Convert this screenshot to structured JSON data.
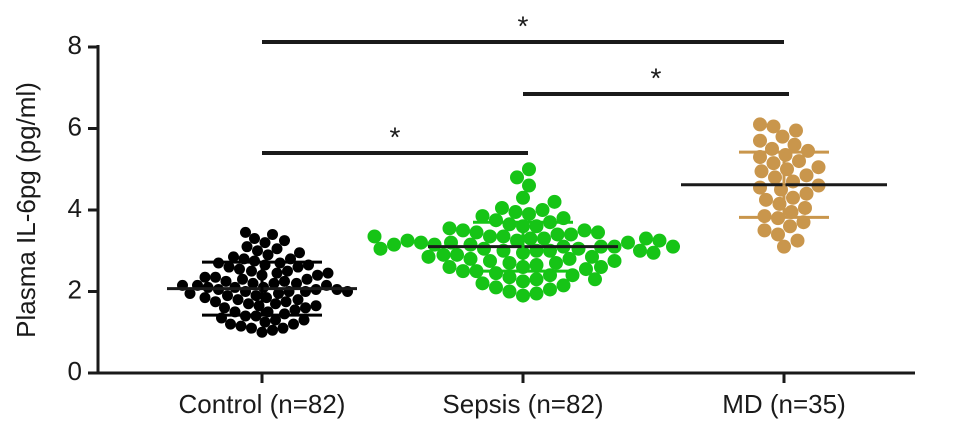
{
  "chart_data": {
    "type": "strip",
    "ylabel": "Plasma IL-6pg (pg/ml)",
    "categories": [
      "Control (n=82)",
      "Sepsis (n=82)",
      "MD (n=35)"
    ],
    "ylim": [
      0,
      8
    ],
    "yticks": [
      0,
      2,
      4,
      6,
      8
    ],
    "series": [
      {
        "color": "#000000",
        "mean": 2.07,
        "sd": 0.65,
        "values": [
          1.0,
          1.05,
          1.1,
          1.1,
          1.15,
          1.2,
          1.2,
          1.25,
          1.3,
          1.3,
          1.4,
          1.4,
          1.45,
          1.5,
          1.5,
          1.55,
          1.6,
          1.6,
          1.65,
          1.7,
          1.7,
          1.75,
          1.8,
          1.8,
          1.85,
          1.9,
          1.9,
          1.95,
          2.0,
          2.0,
          2.0,
          2.05,
          2.05,
          2.1,
          2.1,
          2.1,
          2.15,
          2.15,
          2.2,
          2.2,
          2.2,
          2.25,
          2.25,
          2.3,
          2.3,
          2.35,
          2.4,
          2.4,
          2.45,
          2.5,
          2.5,
          2.55,
          2.6,
          2.6,
          2.65,
          2.7,
          2.7,
          2.75,
          2.8,
          2.8,
          2.85,
          2.9,
          2.95,
          3.0,
          3.05,
          3.1,
          3.2,
          3.25,
          3.3,
          3.4,
          3.45,
          1.35,
          1.75,
          1.85,
          2.05,
          2.35,
          2.45,
          2.65,
          1.95,
          2.15,
          1.65,
          2.0
        ]
      },
      {
        "color": "#16c416",
        "mean": 3.1,
        "sd": 0.6,
        "values": [
          1.9,
          1.95,
          2.0,
          2.05,
          2.1,
          2.15,
          2.2,
          2.25,
          2.3,
          2.35,
          2.4,
          2.4,
          2.45,
          2.5,
          2.5,
          2.55,
          2.6,
          2.6,
          2.65,
          2.7,
          2.7,
          2.75,
          2.8,
          2.8,
          2.85,
          2.9,
          2.9,
          2.95,
          3.0,
          3.0,
          3.0,
          3.05,
          3.05,
          3.1,
          3.1,
          3.1,
          3.15,
          3.15,
          3.2,
          3.2,
          3.2,
          3.25,
          3.25,
          3.3,
          3.3,
          3.35,
          3.35,
          3.4,
          3.4,
          3.45,
          3.5,
          3.5,
          3.55,
          3.6,
          3.6,
          3.65,
          3.7,
          3.75,
          3.8,
          3.85,
          3.9,
          3.95,
          4.0,
          4.05,
          4.2,
          4.3,
          4.6,
          4.8,
          5.0,
          2.3,
          2.6,
          2.85,
          3.0,
          3.15,
          3.3,
          3.45,
          2.95,
          3.25,
          3.05,
          3.35,
          2.75,
          3.1
        ]
      },
      {
        "color": "#c9964c",
        "mean": 4.62,
        "sd": 0.8,
        "values": [
          3.1,
          3.25,
          3.4,
          3.5,
          3.6,
          3.7,
          3.8,
          3.85,
          3.95,
          4.05,
          4.15,
          4.25,
          4.3,
          4.4,
          4.5,
          4.55,
          4.6,
          4.7,
          4.8,
          4.85,
          4.95,
          5.0,
          5.05,
          5.15,
          5.2,
          5.3,
          5.35,
          5.45,
          5.5,
          5.6,
          5.7,
          5.8,
          5.95,
          6.05,
          6.1
        ]
      }
    ],
    "annotations": [
      {
        "from": 0,
        "to": 1,
        "label": "*"
      },
      {
        "from": 1,
        "to": 2,
        "label": "*"
      },
      {
        "from": 0,
        "to": 2,
        "label": "*"
      }
    ]
  }
}
